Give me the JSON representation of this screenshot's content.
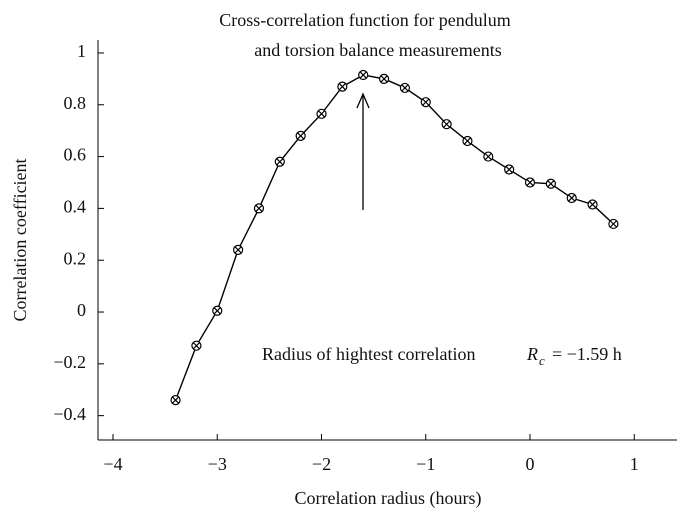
{
  "chart_data": {
    "type": "line",
    "title": [
      "Cross-correlation function for pendulum",
      "and torsion balance measurements"
    ],
    "xlabel": "Correlation radius (hours)",
    "ylabel": "Correlation coefficient",
    "annotation": {
      "text": "Radius of hightest correlation",
      "symbol": "R",
      "subscript": "c",
      "value": "= −1.59 h"
    },
    "x": [
      -3.4,
      -3.2,
      -3.0,
      -2.8,
      -2.6,
      -2.4,
      -2.2,
      -2.0,
      -1.8,
      -1.6,
      -1.4,
      -1.2,
      -1.0,
      -0.8,
      -0.6,
      -0.4,
      -0.2,
      0,
      0.2,
      0.4,
      0.6,
      0.8
    ],
    "series": [
      {
        "color": "#000000",
        "values": [
          -0.34,
          -0.13,
          0.005,
          0.24,
          0.4,
          0.58,
          0.68,
          0.765,
          0.87,
          0.915,
          0.9,
          0.865,
          0.81,
          0.725,
          0.66,
          0.6,
          0.55,
          0.5,
          0.495,
          0.44,
          0.415,
          0.34
        ]
      }
    ],
    "xlim": [
      -4.144,
      1.41
    ],
    "ylim": [
      -0.494,
      1.05
    ],
    "xticks": [
      {
        "value": -4,
        "label": "−4"
      },
      {
        "value": -3,
        "label": "−3"
      },
      {
        "value": -2,
        "label": "−2"
      },
      {
        "value": -1,
        "label": "−1"
      },
      0,
      1
    ],
    "yticks": [
      {
        "value": -0.4,
        "label": "−0.4"
      },
      {
        "value": -0.2,
        "label": "−0.2"
      },
      0,
      0.2,
      0.4,
      0.6,
      0.8,
      1
    ]
  }
}
